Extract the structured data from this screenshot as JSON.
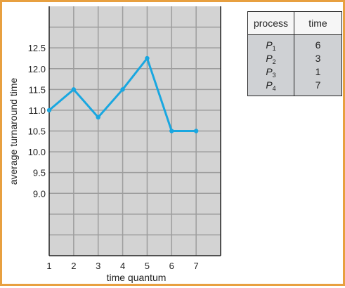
{
  "chart_data": {
    "type": "line",
    "title": "",
    "xlabel": "time quantum",
    "ylabel": "average turnaround time",
    "x_ticks": [
      "1",
      "2",
      "3",
      "4",
      "5",
      "6",
      "7"
    ],
    "y_ticks": [
      "9.0",
      "9.5",
      "10.0",
      "10.5",
      "11.0",
      "11.5",
      "12.0",
      "12.5"
    ],
    "x": [
      1,
      2,
      3,
      4,
      5,
      6,
      7
    ],
    "y": [
      11.0,
      11.5,
      10.83,
      11.5,
      12.25,
      10.5,
      10.5
    ],
    "xlim": [
      1,
      8
    ],
    "ylim": [
      7.5,
      13.5
    ],
    "grid": true,
    "line_color": "#19a7e0",
    "plot_background": "#d3d3d3",
    "grid_color": "#9d9d9d"
  },
  "process_table": {
    "headers": [
      "process",
      "time"
    ],
    "rows": [
      {
        "process": "P",
        "sub": "1",
        "time": "6"
      },
      {
        "process": "P",
        "sub": "2",
        "time": "3"
      },
      {
        "process": "P",
        "sub": "3",
        "time": "1"
      },
      {
        "process": "P",
        "sub": "4",
        "time": "7"
      }
    ],
    "header_background": "#f6f6f6",
    "body_background": "#cfd1d4"
  },
  "frame_color": "#e8a040"
}
